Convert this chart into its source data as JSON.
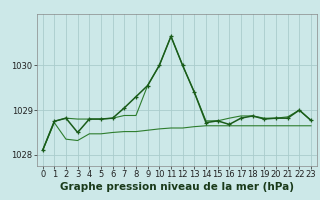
{
  "title": "Graphe pression niveau de la mer (hPa)",
  "background_color": "#cce8e8",
  "grid_color": "#aacccc",
  "line_color_dark": "#1a5c1a",
  "line_color_light": "#2e7d2e",
  "x_labels": [
    "0",
    "1",
    "2",
    "3",
    "4",
    "5",
    "6",
    "7",
    "8",
    "9",
    "10",
    "11",
    "12",
    "13",
    "14",
    "15",
    "16",
    "17",
    "18",
    "19",
    "20",
    "21",
    "22",
    "23"
  ],
  "x_values": [
    0,
    1,
    2,
    3,
    4,
    5,
    6,
    7,
    8,
    9,
    10,
    11,
    12,
    13,
    14,
    15,
    16,
    17,
    18,
    19,
    20,
    21,
    22,
    23
  ],
  "y_main": [
    1028.1,
    1028.75,
    1028.82,
    1028.5,
    1028.8,
    1028.8,
    1028.82,
    1029.05,
    1029.3,
    1029.55,
    1030.0,
    1030.65,
    1030.0,
    1029.4,
    1028.72,
    1028.76,
    1028.68,
    1028.82,
    1028.87,
    1028.8,
    1028.82,
    1028.82,
    1029.0,
    1028.77
  ],
  "y_min": [
    1028.1,
    1028.72,
    1028.35,
    1028.32,
    1028.47,
    1028.47,
    1028.5,
    1028.52,
    1028.52,
    1028.55,
    1028.58,
    1028.6,
    1028.6,
    1028.63,
    1028.65,
    1028.65,
    1028.65,
    1028.65,
    1028.65,
    1028.65,
    1028.65,
    1028.65,
    1028.65,
    1028.65
  ],
  "y_max": [
    1028.1,
    1028.75,
    1028.82,
    1028.8,
    1028.8,
    1028.8,
    1028.82,
    1028.88,
    1028.88,
    1029.55,
    1030.0,
    1030.65,
    1030.0,
    1029.4,
    1028.76,
    1028.76,
    1028.82,
    1028.87,
    1028.87,
    1028.82,
    1028.82,
    1028.85,
    1029.0,
    1028.77
  ],
  "ylim": [
    1027.75,
    1031.15
  ],
  "yticks": [
    1028,
    1029,
    1030
  ],
  "title_fontsize": 7.5,
  "tick_fontsize": 6.0
}
